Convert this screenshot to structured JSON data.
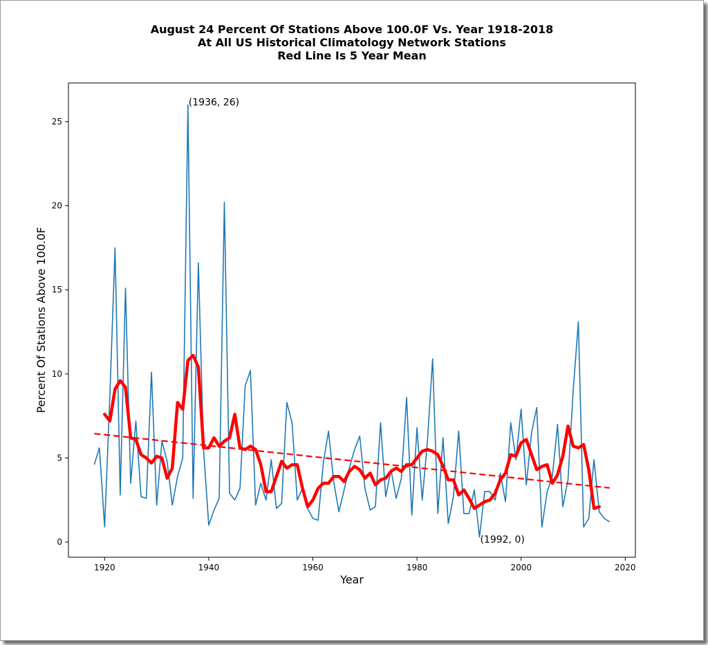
{
  "chart_data": {
    "type": "line",
    "title": [
      "August 24 Percent Of Stations Above 100.0F Vs. Year 1918-2018",
      "At All US Historical Climatology Network Stations",
      "Red Line Is 5 Year Mean"
    ],
    "xlabel": "Year",
    "ylabel": "Percent Of Stations Above 100.0F",
    "xlim": [
      1913.05,
      2021.95
    ],
    "ylim": [
      -0.9,
      27.3
    ],
    "xticks": [
      1920,
      1940,
      1960,
      1980,
      2000,
      2020
    ],
    "yticks": [
      0,
      5,
      10,
      15,
      20,
      25
    ],
    "grid": false,
    "colors": {
      "series": "#1f77b4",
      "mean": "#ff0000",
      "trend": "#ff0000"
    },
    "series": [
      {
        "role": "annual",
        "x": [
          1918,
          1919,
          1920,
          1921,
          1922,
          1923,
          1924,
          1925,
          1926,
          1927,
          1928,
          1929,
          1930,
          1931,
          1932,
          1933,
          1934,
          1935,
          1936,
          1937,
          1938,
          1939,
          1940,
          1941,
          1942,
          1943,
          1944,
          1945,
          1946,
          1947,
          1948,
          1949,
          1950,
          1951,
          1952,
          1953,
          1954,
          1955,
          1956,
          1957,
          1958,
          1959,
          1960,
          1961,
          1962,
          1963,
          1964,
          1965,
          1966,
          1967,
          1968,
          1969,
          1970,
          1971,
          1972,
          1973,
          1974,
          1975,
          1976,
          1977,
          1978,
          1979,
          1980,
          1981,
          1982,
          1983,
          1984,
          1985,
          1986,
          1987,
          1988,
          1989,
          1990,
          1991,
          1992,
          1993,
          1994,
          1995,
          1996,
          1997,
          1998,
          1999,
          2000,
          2001,
          2002,
          2003,
          2004,
          2005,
          2006,
          2007,
          2008,
          2009,
          2010,
          2011,
          2012,
          2013,
          2014,
          2015,
          2016,
          2017
        ],
        "y": [
          4.6,
          5.6,
          0.9,
          8.7,
          17.5,
          2.8,
          15.1,
          3.5,
          7.2,
          2.7,
          2.6,
          10.1,
          2.2,
          6.0,
          4.8,
          2.2,
          3.9,
          5.0,
          26.0,
          2.6,
          16.6,
          5.5,
          1.0,
          1.9,
          2.6,
          20.2,
          2.9,
          2.5,
          3.2,
          9.3,
          10.2,
          2.2,
          3.5,
          2.5,
          4.9,
          2.0,
          2.3,
          8.3,
          7.1,
          2.5,
          3.2,
          2.0,
          1.4,
          1.3,
          4.7,
          6.6,
          3.6,
          1.8,
          3.1,
          4.4,
          5.5,
          6.3,
          3.2,
          1.9,
          2.1,
          7.1,
          2.7,
          4.3,
          2.6,
          3.8,
          8.6,
          1.6,
          6.8,
          2.5,
          6.0,
          10.9,
          1.7,
          6.2,
          1.1,
          2.7,
          6.6,
          1.7,
          1.7,
          3.1,
          0.3,
          3.0,
          3.0,
          2.5,
          4.1,
          2.4,
          7.1,
          4.9,
          7.9,
          3.4,
          6.5,
          8.0,
          0.9,
          3.0,
          3.9,
          7.0,
          2.1,
          3.7,
          9.0,
          13.1,
          0.9,
          1.4,
          4.9,
          1.8,
          1.4,
          1.2
        ]
      },
      {
        "role": "5-year-mean",
        "x": [
          1920,
          1921,
          1922,
          1923,
          1924,
          1925,
          1926,
          1927,
          1928,
          1929,
          1930,
          1931,
          1932,
          1933,
          1934,
          1935,
          1936,
          1937,
          1938,
          1939,
          1940,
          1941,
          1942,
          1943,
          1944,
          1945,
          1946,
          1947,
          1948,
          1949,
          1950,
          1951,
          1952,
          1953,
          1954,
          1955,
          1956,
          1957,
          1958,
          1959,
          1960,
          1961,
          1962,
          1963,
          1964,
          1965,
          1966,
          1967,
          1968,
          1969,
          1970,
          1971,
          1972,
          1973,
          1974,
          1975,
          1976,
          1977,
          1978,
          1979,
          1980,
          1981,
          1982,
          1983,
          1984,
          1985,
          1986,
          1987,
          1988,
          1989,
          1990,
          1991,
          1992,
          1993,
          1994,
          1995,
          1996,
          1997,
          1998,
          1999,
          2000,
          2001,
          2002,
          2003,
          2004,
          2005,
          2006,
          2007,
          2008,
          2009,
          2010,
          2011,
          2012,
          2013,
          2014,
          2015
        ],
        "y": [
          7.6,
          7.2,
          9.1,
          9.6,
          9.2,
          6.2,
          6.1,
          5.2,
          5.0,
          4.7,
          5.1,
          5.0,
          3.8,
          4.4,
          8.3,
          7.9,
          10.8,
          11.1,
          10.4,
          5.6,
          5.6,
          6.2,
          5.7,
          6.0,
          6.2,
          7.6,
          5.6,
          5.5,
          5.7,
          5.5,
          4.6,
          3.0,
          3.0,
          3.9,
          4.8,
          4.4,
          4.6,
          4.6,
          3.2,
          2.1,
          2.5,
          3.2,
          3.5,
          3.5,
          3.9,
          3.9,
          3.6,
          4.2,
          4.5,
          4.3,
          3.8,
          4.1,
          3.4,
          3.7,
          3.8,
          4.2,
          4.4,
          4.2,
          4.6,
          4.6,
          5.0,
          5.4,
          5.5,
          5.4,
          5.2,
          4.5,
          3.7,
          3.7,
          2.8,
          3.1,
          2.6,
          2.0,
          2.2,
          2.4,
          2.5,
          2.9,
          3.7,
          4.1,
          5.2,
          5.1,
          5.9,
          6.1,
          5.2,
          4.3,
          4.5,
          4.6,
          3.5,
          4.0,
          5.1,
          6.9,
          5.7,
          5.6,
          5.8,
          4.3,
          2.0,
          2.1
        ]
      },
      {
        "role": "trend",
        "x": [
          1918,
          2017
        ],
        "y": [
          6.45,
          3.22
        ]
      }
    ],
    "annotations": [
      {
        "text": "(1936, 26)",
        "x": 1936,
        "y": 26
      },
      {
        "text": "(1992, 0)",
        "x": 1992,
        "y": 0
      }
    ]
  }
}
